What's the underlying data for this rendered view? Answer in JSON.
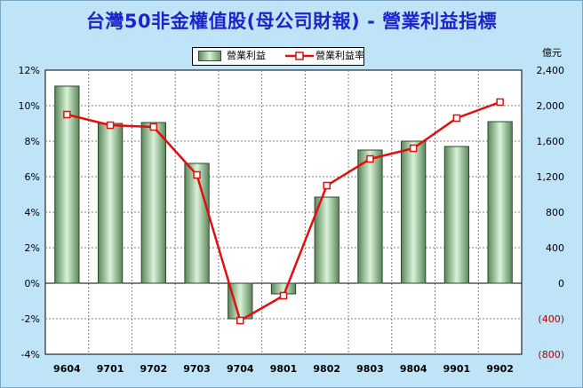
{
  "chart_data": {
    "type": "bar+line",
    "title": "台灣50非金權值股(母公司財報) - 營業利益指標",
    "categories": [
      "9604",
      "9701",
      "9702",
      "9703",
      "9704",
      "9801",
      "9802",
      "9803",
      "9804",
      "9901",
      "9902"
    ],
    "series": [
      {
        "name": "營業利益",
        "type": "bar",
        "axis": "right",
        "values": [
          2220,
          1800,
          1810,
          1350,
          -400,
          -120,
          970,
          1500,
          1600,
          1540,
          1820
        ]
      },
      {
        "name": "營業利益率",
        "type": "line",
        "axis": "left",
        "values": [
          9.5,
          8.9,
          8.8,
          6.1,
          -2.1,
          -0.7,
          5.5,
          7.0,
          7.6,
          9.3,
          10.2
        ]
      }
    ],
    "left_axis": {
      "min": -4,
      "max": 12,
      "step": 2,
      "tick_labels": [
        "-4%",
        "-2%",
        "0%",
        "2%",
        "4%",
        "6%",
        "8%",
        "10%",
        "12%"
      ]
    },
    "right_axis": {
      "unit": "億元",
      "min": -800,
      "max": 2400,
      "step": 400,
      "tick_labels": [
        "(800)",
        "(400)",
        "0",
        "400",
        "800",
        "1,200",
        "1,600",
        "2,000",
        "2,400"
      ]
    },
    "grid": true,
    "legend_position": "top-center",
    "colors": {
      "background": "#bfe4f7",
      "plot_background": "#ffffff",
      "title": "#1f24c8",
      "bar_dark": "#5a865a",
      "bar_light": "#d9f3d9",
      "bar_edge": "#2b4a2b",
      "line": "#e01010",
      "marker_fill": "#ffffff",
      "negative_tick": "#b00000",
      "grid": "#808080"
    }
  }
}
